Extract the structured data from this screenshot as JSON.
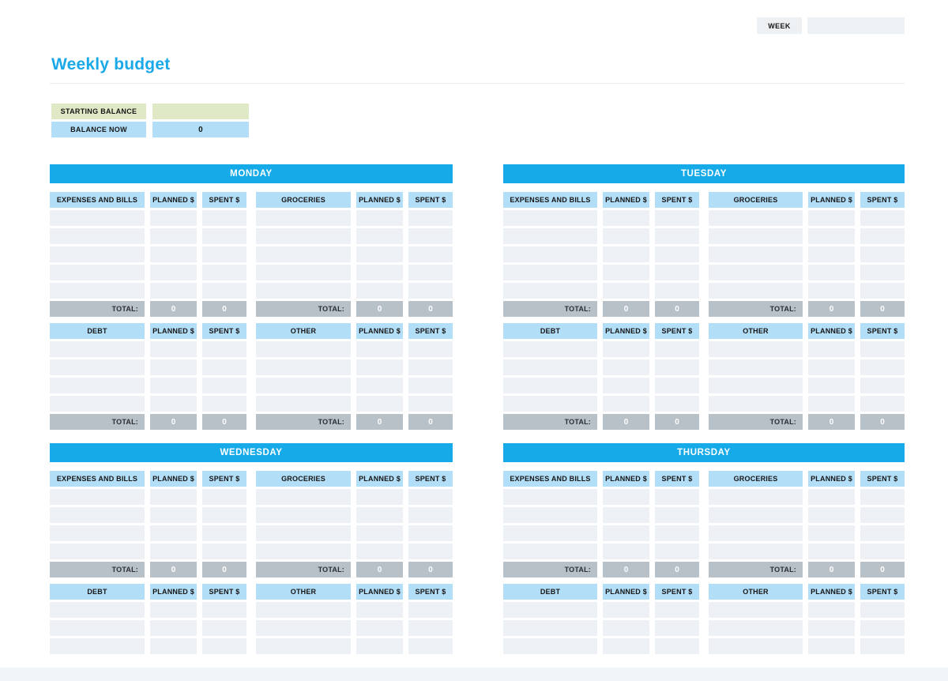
{
  "topbar": {
    "week_label": "WEEK",
    "week_value": ""
  },
  "title": "Weekly budget",
  "balance": {
    "rows": [
      {
        "label": "STARTING BALANCE",
        "value": ""
      },
      {
        "label": "BALANCE NOW",
        "value": "0"
      }
    ]
  },
  "table_labels": {
    "planned": "PLANNED $",
    "spent": "SPENT $",
    "total": "TOTAL:"
  },
  "total_values": {
    "planned": "0",
    "spent": "0"
  },
  "days": [
    {
      "name": "MONDAY",
      "sections": [
        {
          "left_category": "EXPENSES AND BILLS",
          "right_category": "GROCERIES",
          "empty_rows": 5,
          "show_total": true
        },
        {
          "left_category": "DEBT",
          "right_category": "OTHER",
          "empty_rows": 4,
          "show_total": true
        }
      ]
    },
    {
      "name": "TUESDAY",
      "sections": [
        {
          "left_category": "EXPENSES AND BILLS",
          "right_category": "GROCERIES",
          "empty_rows": 5,
          "show_total": true
        },
        {
          "left_category": "DEBT",
          "right_category": "OTHER",
          "empty_rows": 4,
          "show_total": true
        }
      ]
    },
    {
      "name": "WEDNESDAY",
      "sections": [
        {
          "left_category": "EXPENSES AND BILLS",
          "right_category": "GROCERIES",
          "empty_rows": 4,
          "show_total": true
        },
        {
          "left_category": "DEBT",
          "right_category": "OTHER",
          "empty_rows": 3,
          "show_total": false
        }
      ]
    },
    {
      "name": "THURSDAY",
      "sections": [
        {
          "left_category": "EXPENSES AND BILLS",
          "right_category": "GROCERIES",
          "empty_rows": 4,
          "show_total": true
        },
        {
          "left_category": "DEBT",
          "right_category": "OTHER",
          "empty_rows": 3,
          "show_total": false
        }
      ]
    }
  ],
  "colors": {
    "accent_blue": "#17aae8",
    "title_blue": "#1aa9e8",
    "header_cell_blue": "#b3def7",
    "empty_cell_gray": "#edf1f5",
    "total_row_gray": "#b8c0c8",
    "green_cell": "#dfe9c6",
    "week_box_gray": "#eef1f3",
    "footer_strip_gray": "#f2f5f7"
  }
}
